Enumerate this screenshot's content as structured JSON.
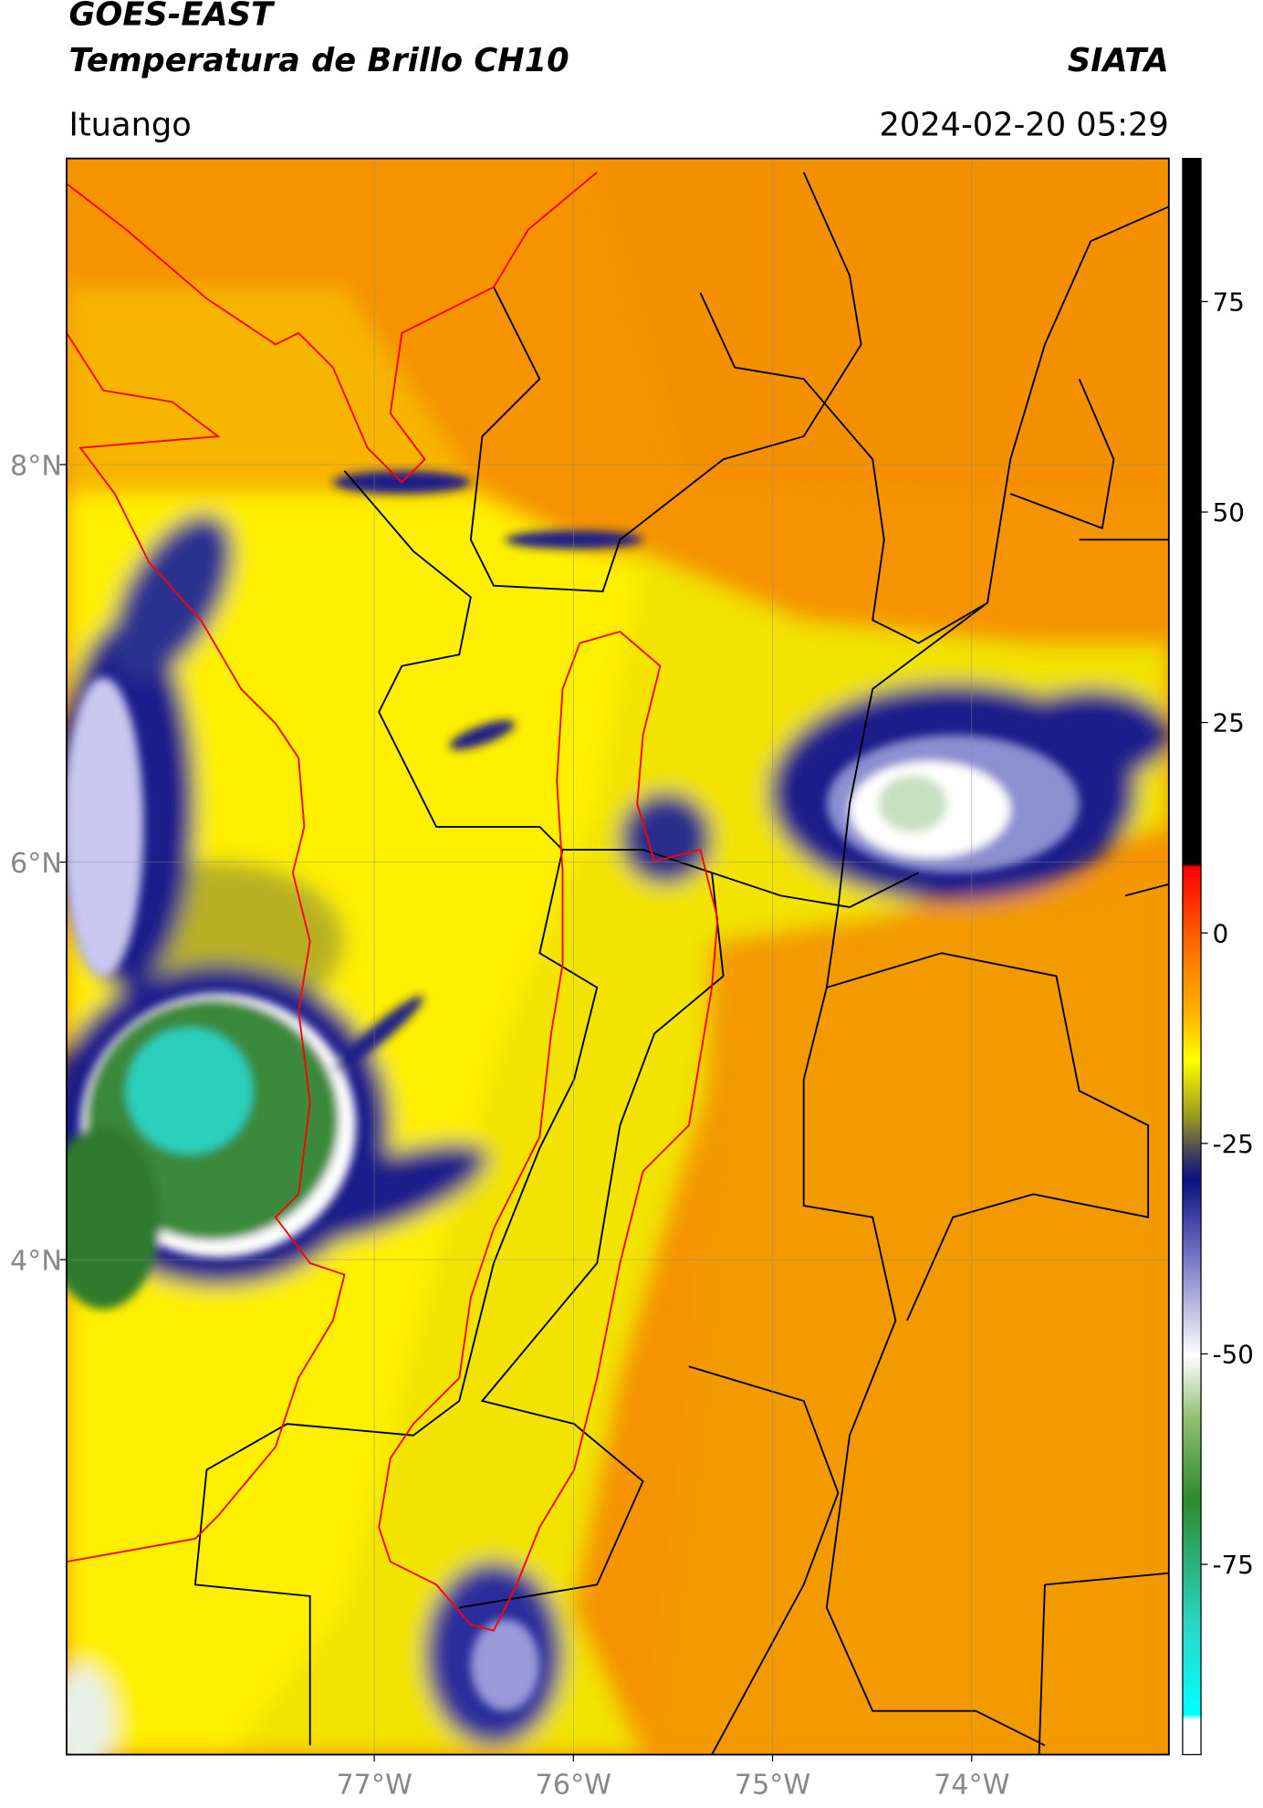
{
  "header": {
    "satellite": "GOES-EAST",
    "product": "Temperatura de Brillo CH10",
    "brand": "SIATA",
    "region": "Ituango",
    "datetime": "2024-02-20 05:29"
  },
  "map": {
    "xlim": [
      -78.545,
      -73.01
    ],
    "ylim": [
      1.51,
      9.54
    ],
    "xticks": [
      {
        "value": -77,
        "label": "77°W"
      },
      {
        "value": -76,
        "label": "76°W"
      },
      {
        "value": -75,
        "label": "75°W"
      },
      {
        "value": -74,
        "label": "74°W"
      }
    ],
    "yticks": [
      {
        "value": 8,
        "label": "8°N"
      },
      {
        "value": 6,
        "label": "6°N"
      },
      {
        "value": 4,
        "label": "4°N"
      }
    ],
    "grid": true
  },
  "colorbar": {
    "lim": [
      -97.6,
      92
    ],
    "ticks": [
      75,
      50,
      25,
      0,
      -25,
      -50,
      -75
    ]
  }
}
